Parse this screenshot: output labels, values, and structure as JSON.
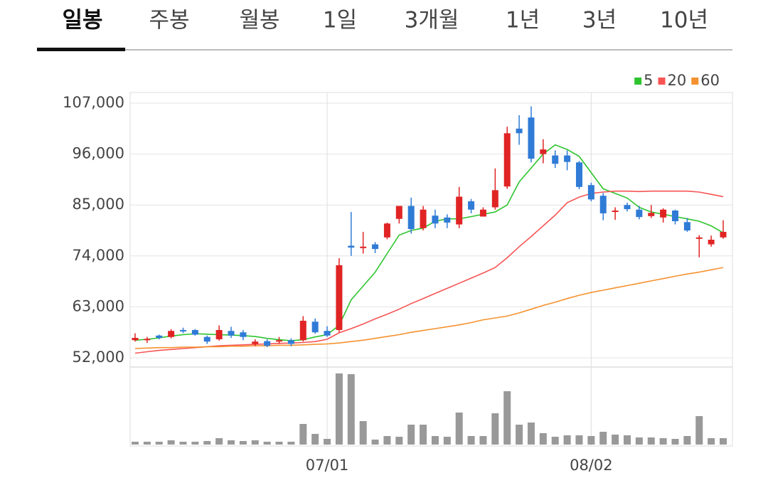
{
  "tabs": {
    "items": [
      "일봉",
      "주봉",
      "월봉",
      "1일",
      "3개월",
      "1년",
      "3년",
      "10년"
    ],
    "active": 0
  },
  "chart_data": {
    "type": "candlestick",
    "categories": [
      null,
      null,
      null,
      null,
      null,
      null,
      null,
      null,
      null,
      null,
      null,
      null,
      null,
      null,
      null,
      null,
      "07/01",
      null,
      null,
      null,
      null,
      null,
      null,
      null,
      null,
      null,
      null,
      null,
      null,
      null,
      null,
      null,
      null,
      null,
      null,
      null,
      null,
      null,
      "08/02",
      null,
      null,
      null,
      null,
      null,
      null,
      null,
      null,
      null,
      null,
      null
    ],
    "open": [
      55800,
      55800,
      56800,
      56500,
      58000,
      58000,
      56500,
      56000,
      57800,
      57500,
      55000,
      55600,
      55500,
      55800,
      55800,
      59800,
      57800,
      58000,
      76200,
      75800,
      76500,
      78000,
      82000,
      84800,
      80000,
      82700,
      82300,
      80800,
      85800,
      82500,
      84500,
      89000,
      101500,
      103900,
      96000,
      95700,
      95700,
      94200,
      89300,
      87000,
      83700,
      85000,
      84000,
      82600,
      82300,
      83800,
      81300,
      77900,
      76500,
      78000
    ],
    "high": [
      57300,
      56500,
      57000,
      58200,
      58500,
      58200,
      56800,
      59000,
      58700,
      58000,
      56000,
      56000,
      56500,
      56200,
      61000,
      60500,
      58800,
      73500,
      83500,
      79200,
      77000,
      81200,
      84800,
      86600,
      84800,
      84000,
      83000,
      88900,
      86300,
      84500,
      92900,
      101900,
      104400,
      106300,
      99200,
      96800,
      96800,
      94500,
      89800,
      87600,
      84500,
      85500,
      84800,
      85000,
      84300,
      84000,
      82200,
      78500,
      78400,
      81700
    ],
    "low": [
      55500,
      55200,
      56000,
      56200,
      57300,
      56800,
      55000,
      55700,
      56300,
      55800,
      54500,
      54300,
      55000,
      54500,
      55500,
      57200,
      56500,
      57500,
      74000,
      74500,
      74600,
      77600,
      81000,
      78800,
      79500,
      80000,
      80000,
      80000,
      83200,
      82500,
      84000,
      88500,
      98000,
      94200,
      94000,
      93000,
      92500,
      88400,
      85800,
      81700,
      81800,
      83600,
      81900,
      82200,
      81200,
      80800,
      79200,
      73700,
      76000,
      77700
    ],
    "close": [
      56300,
      56100,
      56300,
      57800,
      57700,
      57000,
      55500,
      58000,
      56800,
      56500,
      55500,
      54600,
      55800,
      55000,
      60000,
      57500,
      56800,
      72000,
      75800,
      76000,
      75500,
      81000,
      84800,
      79800,
      84000,
      81000,
      81200,
      86800,
      84000,
      84000,
      88200,
      100500,
      100500,
      95000,
      97000,
      93900,
      94300,
      88900,
      86200,
      83200,
      83800,
      84100,
      82400,
      83300,
      84000,
      81500,
      79500,
      78000,
      77500,
      79200
    ],
    "up_color": "#e02424",
    "down_color": "#2f7bd6",
    "series": [
      {
        "name": "5",
        "color": "#2ec42e",
        "values": [
          55800,
          56000,
          56300,
          56700,
          57000,
          57200,
          57100,
          57000,
          56900,
          56800,
          56600,
          56200,
          55900,
          55700,
          55900,
          56500,
          57000,
          59000,
          64500,
          67500,
          70500,
          74500,
          78500,
          79500,
          80000,
          81500,
          82000,
          82000,
          82500,
          83000,
          83500,
          85000,
          90000,
          93000,
          96000,
          98000,
          97000,
          95500,
          92000,
          88500,
          87500,
          86500,
          84500,
          83500,
          83000,
          82500,
          82000,
          81500,
          80500,
          79000
        ]
      },
      {
        "name": "20",
        "color": "#f75454",
        "values": [
          53000,
          53300,
          53600,
          53800,
          54000,
          54200,
          54400,
          54600,
          54700,
          54800,
          54900,
          55000,
          55100,
          55200,
          55300,
          55500,
          56000,
          57400,
          58300,
          59300,
          60400,
          61400,
          62500,
          63700,
          64800,
          65900,
          67000,
          68100,
          69200,
          70300,
          71500,
          73600,
          76000,
          78200,
          80500,
          82800,
          85500,
          86700,
          87500,
          87800,
          88000,
          88000,
          87900,
          88000,
          88000,
          88000,
          88000,
          87800,
          87300,
          86800
        ]
      },
      {
        "name": "60",
        "color": "#f5922f",
        "values": [
          54000,
          54100,
          54200,
          54200,
          54300,
          54300,
          54400,
          54400,
          54500,
          54500,
          54600,
          54600,
          54700,
          54700,
          54800,
          54900,
          55000,
          55200,
          55500,
          55800,
          56200,
          56600,
          57000,
          57500,
          57900,
          58300,
          58700,
          59100,
          59600,
          60200,
          60600,
          61000,
          61700,
          62500,
          63300,
          64000,
          64800,
          65500,
          66100,
          66600,
          67100,
          67600,
          68100,
          68600,
          69100,
          69600,
          70100,
          70500,
          71000,
          71500
        ]
      }
    ],
    "volume": [
      4,
      4,
      4,
      6,
      4,
      4,
      5,
      9,
      6,
      5,
      6,
      4,
      4,
      4,
      29,
      15,
      8,
      100,
      99,
      33,
      7,
      12,
      11,
      28,
      28,
      12,
      11,
      45,
      12,
      12,
      44,
      75,
      28,
      31,
      16,
      11,
      13,
      13,
      12,
      18,
      14,
      13,
      10,
      10,
      9,
      8,
      12,
      40,
      9,
      9
    ],
    "volume_color": "#999999",
    "ylim": [
      52000,
      107000
    ],
    "yticks": [
      {
        "value": 52000,
        "label": "52,000"
      },
      {
        "value": 63000,
        "label": "63,000"
      },
      {
        "value": 74000,
        "label": "74,000"
      },
      {
        "value": 85000,
        "label": "85,000"
      },
      {
        "value": 96000,
        "label": "96,000"
      },
      {
        "value": 107000,
        "label": "107,000"
      }
    ],
    "grid": true,
    "legend": "top-right"
  }
}
